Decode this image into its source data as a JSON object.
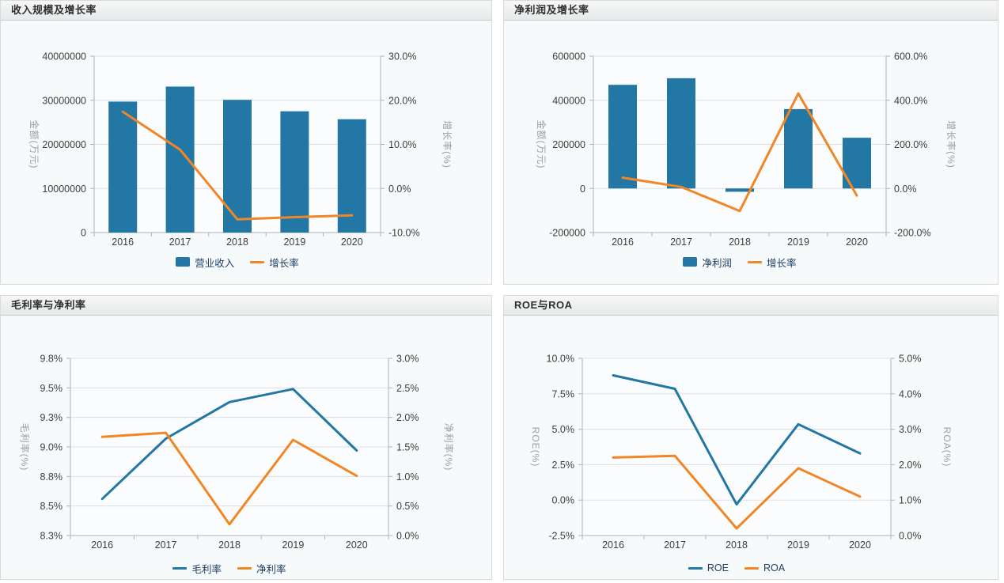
{
  "style": {
    "series_blue": "#2377a4",
    "series_orange": "#f18627",
    "plot_bg": "#fbfcfd",
    "grid_color": "#dcdfe2",
    "axis_line_color": "#a9b6bf",
    "tick_text_color": "#3d3d3d",
    "axis_name_color": "#9aa0a6",
    "legend_text_color": "#1e3e63"
  },
  "chart_data": [
    {
      "type": "bar+line",
      "title": "收入规模及增长率",
      "categories": [
        "2016",
        "2017",
        "2018",
        "2019",
        "2020"
      ],
      "left_axis": {
        "name": "金额(万元)",
        "min": 0,
        "max": 40000000,
        "tick_values": [
          0,
          10000000,
          20000000,
          30000000,
          40000000
        ],
        "tick_labels": [
          "0",
          "10000000",
          "20000000",
          "30000000",
          "40000000"
        ]
      },
      "right_axis": {
        "name": "增长率(%)",
        "min": -10,
        "max": 30,
        "tick_values": [
          -10,
          0,
          10,
          20,
          30
        ],
        "tick_labels": [
          "-10.0%",
          "0.0%",
          "10.0%",
          "20.0%",
          "30.0%"
        ]
      },
      "series": [
        {
          "name": "营业收入",
          "type": "bar",
          "axis": "left",
          "color": "blue",
          "values": [
            29700000,
            33100000,
            30100000,
            27500000,
            25700000
          ]
        },
        {
          "name": "增长率",
          "type": "line",
          "axis": "right",
          "color": "orange",
          "values": [
            17.4,
            8.8,
            -7.0,
            -6.5,
            -6.1
          ]
        }
      ]
    },
    {
      "type": "bar+line",
      "title": "净利润及增长率",
      "categories": [
        "2016",
        "2017",
        "2018",
        "2019",
        "2020"
      ],
      "left_axis": {
        "name": "金额(万元)",
        "min": -200000,
        "max": 600000,
        "tick_values": [
          -200000,
          0,
          200000,
          400000,
          600000
        ],
        "tick_labels": [
          "-200000",
          "0",
          "200000",
          "400000",
          "600000"
        ]
      },
      "right_axis": {
        "name": "增长率(%)",
        "min": -200,
        "max": 600,
        "tick_values": [
          -200,
          0,
          200,
          400,
          600
        ],
        "tick_labels": [
          "-200.0%",
          "0.0%",
          "200.0%",
          "400.0%",
          "600.0%"
        ]
      },
      "series": [
        {
          "name": "净利润",
          "type": "bar",
          "axis": "left",
          "color": "blue",
          "values": [
            470000,
            500000,
            -15000,
            360000,
            230000
          ]
        },
        {
          "name": "增长率",
          "type": "line",
          "axis": "right",
          "color": "orange",
          "values": [
            49,
            7,
            -102,
            431,
            -32
          ]
        }
      ]
    },
    {
      "type": "line",
      "title": "毛利率与净利率",
      "categories": [
        "2016",
        "2017",
        "2018",
        "2019",
        "2020"
      ],
      "left_axis": {
        "name": "毛利率(%)",
        "min": 8.25,
        "max": 9.75,
        "tick_values": [
          8.25,
          8.5,
          8.75,
          9.0,
          9.25,
          9.5,
          9.75
        ],
        "tick_labels": [
          "8.3%",
          "8.5%",
          "8.8%",
          "9.0%",
          "9.3%",
          "9.5%",
          "9.8%"
        ]
      },
      "right_axis": {
        "name": "净利率(%)",
        "min": 0,
        "max": 3,
        "tick_values": [
          0,
          0.5,
          1,
          1.5,
          2,
          2.5,
          3
        ],
        "tick_labels": [
          "0.0%",
          "0.5%",
          "1.0%",
          "1.5%",
          "2.0%",
          "2.5%",
          "3.0%"
        ]
      },
      "series": [
        {
          "name": "毛利率",
          "type": "line",
          "axis": "left",
          "color": "blue",
          "values": [
            8.56,
            9.07,
            9.38,
            9.49,
            8.97
          ]
        },
        {
          "name": "净利率",
          "type": "line",
          "axis": "right",
          "color": "orange",
          "values": [
            1.67,
            1.74,
            0.19,
            1.62,
            1.01
          ]
        }
      ]
    },
    {
      "type": "line",
      "title": "ROE与ROA",
      "categories": [
        "2016",
        "2017",
        "2018",
        "2019",
        "2020"
      ],
      "left_axis": {
        "name": "ROE(%)",
        "min": -2.5,
        "max": 10,
        "tick_values": [
          -2.5,
          0,
          2.5,
          5,
          7.5,
          10
        ],
        "tick_labels": [
          "-2.5%",
          "0.0%",
          "2.5%",
          "5.0%",
          "7.5%",
          "10.0%"
        ]
      },
      "right_axis": {
        "name": "ROA(%)",
        "min": 0,
        "max": 5,
        "tick_values": [
          0,
          1,
          2,
          3,
          4,
          5
        ],
        "tick_labels": [
          "0.0%",
          "1.0%",
          "2.0%",
          "3.0%",
          "4.0%",
          "5.0%"
        ]
      },
      "series": [
        {
          "name": "ROE",
          "type": "line",
          "axis": "left",
          "color": "blue",
          "values": [
            8.8,
            7.85,
            -0.3,
            5.35,
            3.3
          ]
        },
        {
          "name": "ROA",
          "type": "line",
          "axis": "right",
          "color": "orange",
          "values": [
            2.2,
            2.25,
            0.2,
            1.9,
            1.1
          ]
        }
      ]
    }
  ]
}
